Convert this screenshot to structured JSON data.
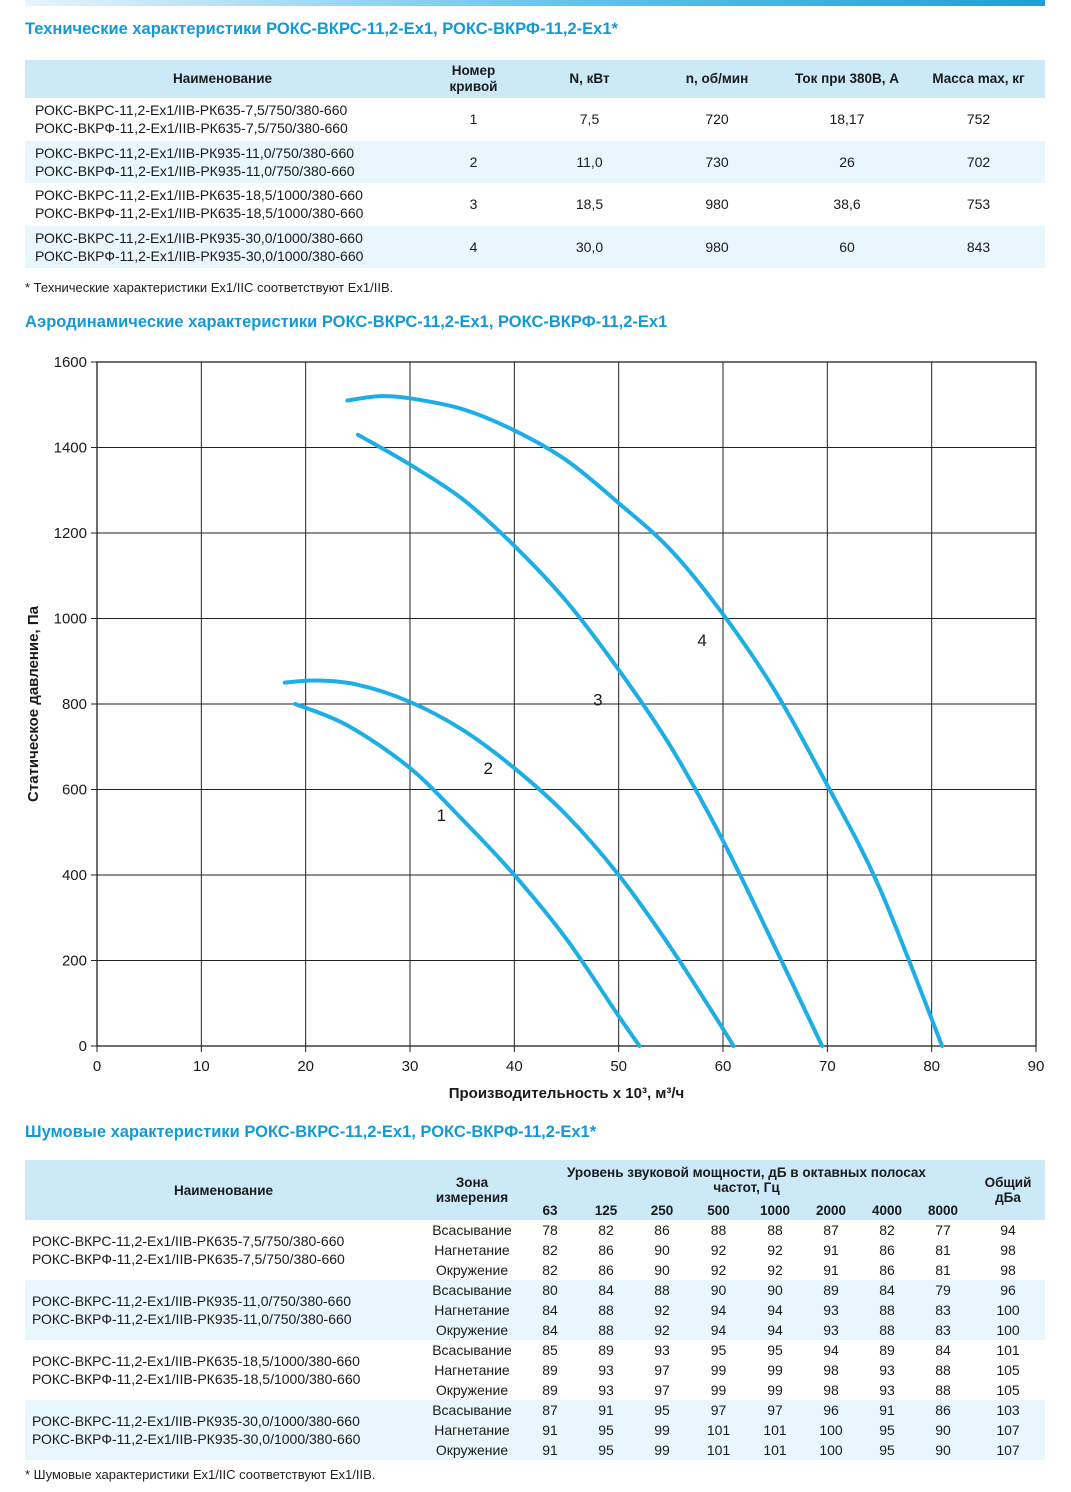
{
  "spec": {
    "title": "Технические характеристики РОКС-ВКРС-11,2-Ex1, РОКС-ВКРФ-11,2-Ex1*",
    "headers": {
      "name": "Наименование",
      "curve_line1": "Номер",
      "curve_line2": "кривой",
      "power": "N, кВт",
      "rpm": "n, об/мин",
      "current": "Ток при 380В, А",
      "mass": "Масса max, кг"
    },
    "rows": [
      {
        "name1": "РОКС-ВКРС-11,2-Ex1/IIB-РК635-7,5/750/380-660",
        "name2": "РОКС-ВКРФ-11,2-Ex1/IIB-РК635-7,5/750/380-660",
        "curve": "1",
        "power": "7,5",
        "rpm": "720",
        "current": "18,17",
        "mass": "752"
      },
      {
        "name1": "РОКС-ВКРС-11,2-Ex1/IIB-РК935-11,0/750/380-660",
        "name2": "РОКС-ВКРФ-11,2-Ex1/IIB-РК935-11,0/750/380-660",
        "curve": "2",
        "power": "11,0",
        "rpm": "730",
        "current": "26",
        "mass": "702"
      },
      {
        "name1": "РОКС-ВКРС-11,2-Ex1/IIB-РК635-18,5/1000/380-660",
        "name2": "РОКС-ВКРФ-11,2-Ex1/IIB-РК635-18,5/1000/380-660",
        "curve": "3",
        "power": "18,5",
        "rpm": "980",
        "current": "38,6",
        "mass": "753"
      },
      {
        "name1": "РОКС-ВКРС-11,2-Ex1/IIB-РК935-30,0/1000/380-660",
        "name2": "РОКС-ВКРФ-11,2-Ex1/IIB-РК935-30,0/1000/380-660",
        "curve": "4",
        "power": "30,0",
        "rpm": "980",
        "current": "60",
        "mass": "843"
      }
    ],
    "note": "* Технические характеристики Ex1/IIC соответствуют Ex1/IIB."
  },
  "aero_title": "Аэродинамические характеристики РОКС-ВКРС-11,2-Ex1, РОКС-ВКРФ-11,2-Ex1",
  "chart_data": {
    "type": "line",
    "title": "",
    "xlabel": "Производительность х 10³, м³/ч",
    "ylabel": "Статическое давление, Па",
    "xlim": [
      0,
      90
    ],
    "ylim": [
      0,
      1600
    ],
    "xticks": [
      "0",
      "10",
      "20",
      "30",
      "40",
      "50",
      "60",
      "70",
      "80",
      "90"
    ],
    "yticks": [
      "0",
      "200",
      "400",
      "600",
      "800",
      "1000",
      "1200",
      "1400",
      "1600"
    ],
    "grid": true,
    "line_color": "#1eaee6",
    "series": [
      {
        "name": "1",
        "label_at": [
          33,
          540
        ],
        "x": [
          19,
          24,
          30,
          35,
          40,
          45,
          50,
          52
        ],
        "y": [
          800,
          750,
          650,
          530,
          400,
          250,
          70,
          0
        ]
      },
      {
        "name": "2",
        "label_at": [
          37.5,
          650
        ],
        "x": [
          18,
          21,
          25,
          30,
          35,
          40,
          45,
          50,
          55,
          60,
          61
        ],
        "y": [
          850,
          855,
          845,
          805,
          740,
          650,
          540,
          400,
          230,
          40,
          0
        ]
      },
      {
        "name": "3",
        "label_at": [
          48,
          810
        ],
        "x": [
          25,
          30,
          35,
          40,
          45,
          50,
          55,
          60,
          65,
          69.5
        ],
        "y": [
          1430,
          1360,
          1280,
          1170,
          1040,
          880,
          700,
          480,
          230,
          0
        ]
      },
      {
        "name": "4",
        "label_at": [
          58,
          950
        ],
        "x": [
          24,
          27,
          30,
          35,
          40,
          45,
          50,
          55,
          60,
          65,
          70,
          75,
          81
        ],
        "y": [
          1510,
          1520,
          1515,
          1490,
          1440,
          1370,
          1270,
          1160,
          1010,
          830,
          610,
          370,
          0
        ]
      }
    ]
  },
  "noise": {
    "title": "Шумовые характеристики РОКС-ВКРС-11,2-Ex1, РОКС-ВКРФ-11,2-Ex1*",
    "headers": {
      "name": "Наименование",
      "zone_line1": "Зона",
      "zone_line2": "измерения",
      "level": "Уровень звуковой мощности, дБ в октавных полосах частот, Гц",
      "total_line1": "Общий",
      "total_line2": "дБа"
    },
    "freqs": [
      "63",
      "125",
      "250",
      "500",
      "1000",
      "2000",
      "4000",
      "8000"
    ],
    "groups": [
      {
        "name1": "РОКС-ВКРС-11,2-Ex1/IIB-РК635-7,5/750/380-660",
        "name2": "РОКС-ВКРФ-11,2-Ex1/IIB-РК635-7,5/750/380-660",
        "rows": [
          {
            "zone": "Всасывание",
            "v": [
              "78",
              "82",
              "86",
              "88",
              "88",
              "87",
              "82",
              "77"
            ],
            "total": "94"
          },
          {
            "zone": "Нагнетание",
            "v": [
              "82",
              "86",
              "90",
              "92",
              "92",
              "91",
              "86",
              "81"
            ],
            "total": "98"
          },
          {
            "zone": "Окружение",
            "v": [
              "82",
              "86",
              "90",
              "92",
              "92",
              "91",
              "86",
              "81"
            ],
            "total": "98"
          }
        ]
      },
      {
        "name1": "РОКС-ВКРС-11,2-Ex1/IIB-РК935-11,0/750/380-660",
        "name2": "РОКС-ВКРФ-11,2-Ex1/IIB-РК935-11,0/750/380-660",
        "rows": [
          {
            "zone": "Всасывание",
            "v": [
              "80",
              "84",
              "88",
              "90",
              "90",
              "89",
              "84",
              "79"
            ],
            "total": "96"
          },
          {
            "zone": "Нагнетание",
            "v": [
              "84",
              "88",
              "92",
              "94",
              "94",
              "93",
              "88",
              "83"
            ],
            "total": "100"
          },
          {
            "zone": "Окружение",
            "v": [
              "84",
              "88",
              "92",
              "94",
              "94",
              "93",
              "88",
              "83"
            ],
            "total": "100"
          }
        ]
      },
      {
        "name1": "РОКС-ВКРС-11,2-Ex1/IIB-РК635-18,5/1000/380-660",
        "name2": "РОКС-ВКРФ-11,2-Ex1/IIB-РК635-18,5/1000/380-660",
        "rows": [
          {
            "zone": "Всасывание",
            "v": [
              "85",
              "89",
              "93",
              "95",
              "95",
              "94",
              "89",
              "84"
            ],
            "total": "101"
          },
          {
            "zone": "Нагнетание",
            "v": [
              "89",
              "93",
              "97",
              "99",
              "99",
              "98",
              "93",
              "88"
            ],
            "total": "105"
          },
          {
            "zone": "Окружение",
            "v": [
              "89",
              "93",
              "97",
              "99",
              "99",
              "98",
              "93",
              "88"
            ],
            "total": "105"
          }
        ]
      },
      {
        "name1": "РОКС-ВКРС-11,2-Ex1/IIB-РК935-30,0/1000/380-660",
        "name2": "РОКС-ВКРФ-11,2-Ex1/IIB-РК935-30,0/1000/380-660",
        "rows": [
          {
            "zone": "Всасывание",
            "v": [
              "87",
              "91",
              "95",
              "97",
              "97",
              "96",
              "91",
              "86"
            ],
            "total": "103"
          },
          {
            "zone": "Нагнетание",
            "v": [
              "91",
              "95",
              "99",
              "101",
              "101",
              "100",
              "95",
              "90"
            ],
            "total": "107"
          },
          {
            "zone": "Окружение",
            "v": [
              "91",
              "95",
              "99",
              "101",
              "101",
              "100",
              "95",
              "90"
            ],
            "total": "107"
          }
        ]
      }
    ],
    "note": "* Шумовые характеристики Ex1/IIC соответствуют Ex1/IIB."
  }
}
